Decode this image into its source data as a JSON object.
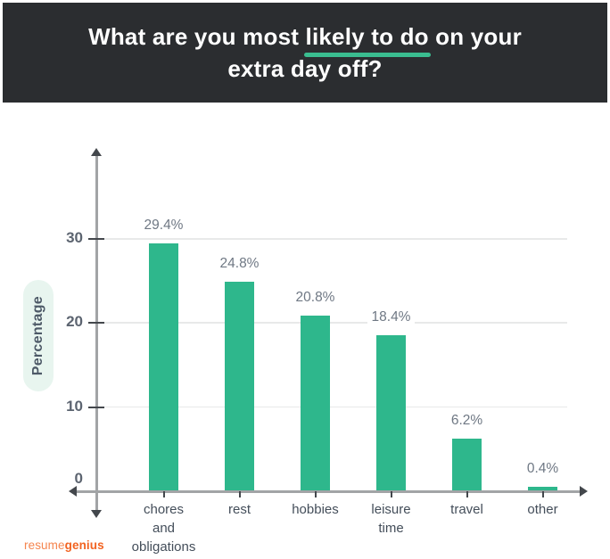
{
  "header": {
    "title_full": "What are you most likely to do on your extra day off?",
    "title_line1_prefix": "What are you most ",
    "title_line1_highlight": "likely to do",
    "title_line1_suffix": " on your",
    "title_line2": "extra day off?",
    "bg_color": "#2b2d30",
    "underline_color": "#3abd90"
  },
  "chart_data": {
    "type": "bar",
    "title": "What are you most likely to do on your extra day off?",
    "categories": [
      "chores\nand\nobligations",
      "rest",
      "hobbies",
      "leisure\ntime",
      "travel",
      "other"
    ],
    "values": [
      29.4,
      24.8,
      20.8,
      18.4,
      6.2,
      0.4
    ],
    "value_labels": [
      "29.4%",
      "24.8%",
      "20.8%",
      "18.4%",
      "6.2%",
      "0.4%"
    ],
    "xlabel": "",
    "ylabel": "Percentage",
    "yticks": [
      0,
      10,
      20,
      30
    ],
    "ylim": [
      0,
      40
    ],
    "grid": true,
    "legend_position": "none",
    "bar_color": "#2eb78c",
    "axis_color": "#a2a4a6",
    "gridline_color": "#e8e9e9"
  },
  "ylabel_pill": {
    "text": "Percentage",
    "bg_color": "#e8f5ef",
    "text_color": "#4d5967"
  },
  "footer": {
    "logo_part1": "resume",
    "logo_part2": "genius",
    "part1_color": "#f5854f",
    "part2_color": "#f26321"
  }
}
